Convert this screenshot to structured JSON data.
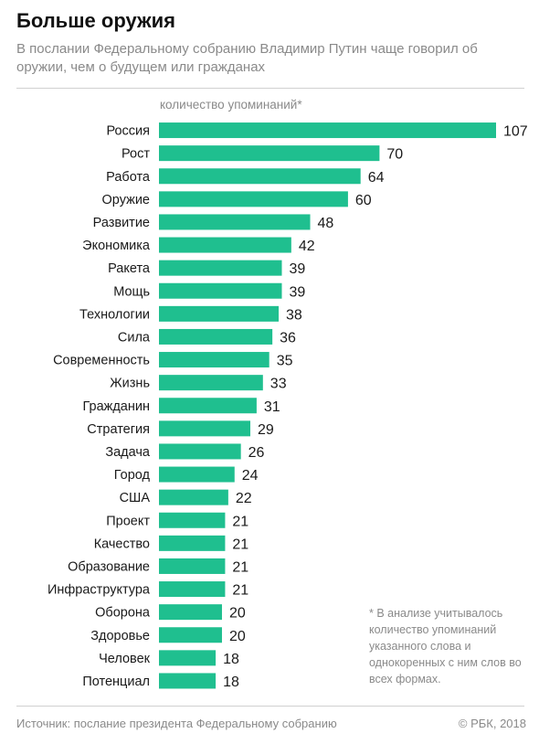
{
  "header": {
    "title": "Больше оружия",
    "subtitle": "В послании Федеральному собранию Владимир Путин чаще говорил об оружии, чем о будущем или гражданах"
  },
  "footer": {
    "source": "Источник: послание президента Федеральному собранию",
    "copyright": "© РБК, 2018"
  },
  "colors": {
    "bar": "#1fbf8f",
    "text": "#1a1a1a",
    "muted": "#8a8a8a"
  },
  "chart_data": {
    "type": "bar",
    "orientation": "horizontal",
    "unit_label": "количество упоминаний*",
    "categories": [
      "Россия",
      "Рост",
      "Работа",
      "Оружие",
      "Развитие",
      "Экономика",
      "Ракета",
      "Мощь",
      "Технологии",
      "Сила",
      "Современность",
      "Жизнь",
      "Гражданин",
      "Стратегия",
      "Задача",
      "Город",
      "США",
      "Проект",
      "Качество",
      "Образование",
      "Инфраструктура",
      "Оборона",
      "Здоровье",
      "Человек",
      "Потенциал"
    ],
    "values": [
      107,
      70,
      64,
      60,
      48,
      42,
      39,
      39,
      38,
      36,
      35,
      33,
      31,
      29,
      26,
      24,
      22,
      21,
      21,
      21,
      21,
      20,
      20,
      18,
      18
    ],
    "xlim": [
      0,
      107
    ],
    "grid": false,
    "footnote": "* В анализе учитывалось количество упоминаний указанного слова и однокоренных с ним слов во всех формах."
  }
}
